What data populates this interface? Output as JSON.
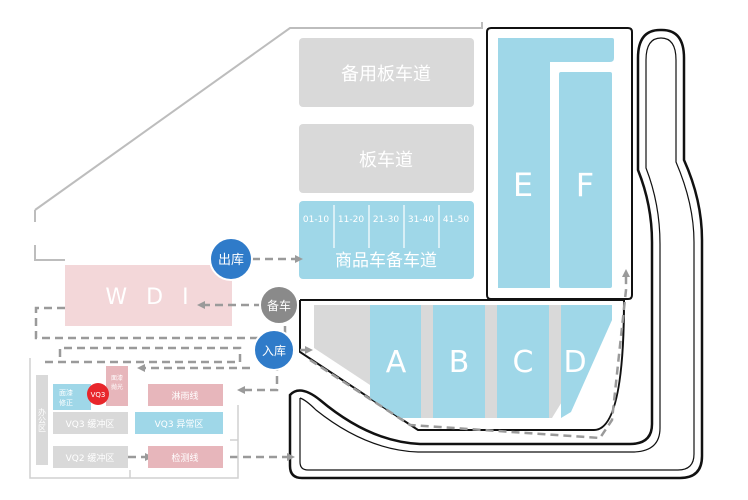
{
  "zones": {
    "spare_plate_lane": "备用板车道",
    "plate_lane": "板车道",
    "commodity_standby_lane": "商品车备车道",
    "wdi": "W D I",
    "zone_e": "E",
    "zone_f": "F",
    "zone_a": "A",
    "zone_b": "B",
    "zone_c": "C",
    "zone_d": "D"
  },
  "lanes": [
    "01-10",
    "11-20",
    "21-30",
    "31-40",
    "41-50"
  ],
  "markers": {
    "exit": "出库",
    "standby": "备车",
    "entry": "入库",
    "vq3": "VQ3",
    "gate": "I"
  },
  "small_zones": {
    "paint_fix": [
      "面漆",
      "修正"
    ],
    "paint_polish": [
      "面漆",
      "抛光"
    ],
    "rain_line": "淋雨线",
    "vq3_buffer": "VQ3 缓冲区",
    "vq3_abnormal": "VQ3 异常区",
    "vq2_buffer": "VQ2 缓冲区",
    "inspection_line": "检测线",
    "office": "办公区"
  },
  "colors": {
    "gray_zone": "#d9d9d9",
    "blue_zone": "#9fd7e8",
    "blue_zone_dark": "#7cc7df",
    "pink_zone": "#f3d7d9",
    "pink_zone_dark": "#e7b6bb",
    "marker_blue": "#2f7bc9",
    "marker_gray": "#8a8a8a",
    "marker_red": "#e8262b",
    "track": "#111111",
    "dash": "#9a9a9a"
  }
}
